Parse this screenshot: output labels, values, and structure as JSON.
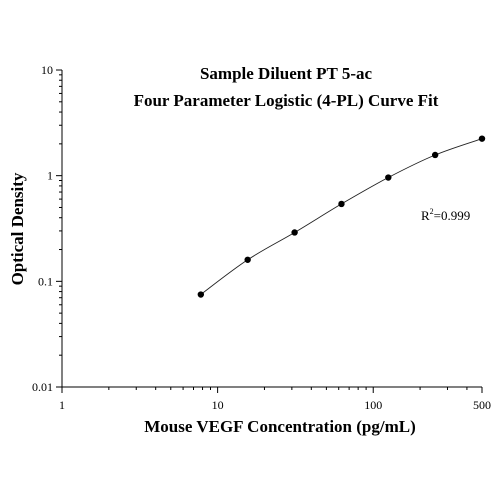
{
  "chart_data": {
    "type": "scatter",
    "title": "Sample Diluent PT 5-ac",
    "subtitle": "Four Parameter Logistic (4-PL) Curve Fit",
    "xlabel": "Mouse VEGF Concentration (pg/mL)",
    "ylabel": "Optical Density",
    "x_scale": "log",
    "y_scale": "log",
    "xlim": [
      1,
      500
    ],
    "ylim": [
      0.01,
      10
    ],
    "x_ticks": [
      "1",
      "10",
      "100",
      "500"
    ],
    "y_ticks": [
      "0.01",
      "0.1",
      "1",
      "10"
    ],
    "grid": false,
    "annotation": {
      "base": "R",
      "sup": "2",
      "rest": "=0.999"
    },
    "series": [
      {
        "type": "scatter",
        "x": [
          7.8,
          15.6,
          31.25,
          62.5,
          125,
          250,
          500
        ],
        "y": [
          0.075,
          0.16,
          0.29,
          0.54,
          0.96,
          1.57,
          2.24
        ]
      }
    ]
  }
}
